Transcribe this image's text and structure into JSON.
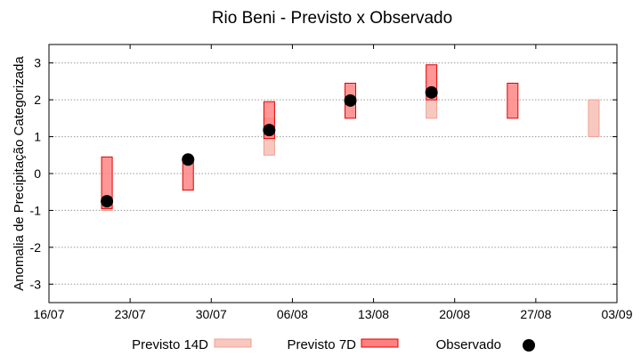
{
  "chart_data": {
    "type": "range",
    "title": "Rio Beni - Previsto x Observado",
    "xlabel": "",
    "ylabel": "Anomalia de Precipitação Categorizada",
    "ylim": [
      -3.5,
      3.5
    ],
    "yticks": [
      "-3",
      "-2",
      "-1",
      "0",
      "1",
      "2",
      "3"
    ],
    "xlim": [
      "2024-07-16",
      "2024-09-03"
    ],
    "xticks": [
      "16/07",
      "23/07",
      "30/07",
      "06/08",
      "13/08",
      "20/08",
      "27/08",
      "03/09"
    ],
    "grid": true,
    "legend_position": "bottom",
    "legend": {
      "forecast14": "Previsto 14D",
      "forecast7": "Previsto 7D",
      "observed": "Observado"
    },
    "colors": {
      "forecast14_fill": "#f8c8c0",
      "forecast14_stroke": "#f0a090",
      "forecast7_fill": "#ff8080",
      "forecast7_stroke": "#e00000",
      "observed": "#000000",
      "grid": "#9a9a9a"
    },
    "series": [
      {
        "name": "Previsto 14D",
        "kind": "range",
        "points": [
          {
            "x": "2024-07-21",
            "low": -1.0,
            "high": -0.75
          },
          {
            "x": "2024-08-04",
            "low": 0.5,
            "high": 1.5
          },
          {
            "x": "2024-08-18",
            "low": 1.5,
            "high": 2.0
          },
          {
            "x": "2024-09-01",
            "low": 1.0,
            "high": 2.0
          }
        ]
      },
      {
        "name": "Previsto 7D",
        "kind": "range",
        "points": [
          {
            "x": "2024-07-21",
            "low": -0.95,
            "high": 0.45
          },
          {
            "x": "2024-07-28",
            "low": -0.45,
            "high": 0.35
          },
          {
            "x": "2024-08-04",
            "low": 0.95,
            "high": 1.95
          },
          {
            "x": "2024-08-11",
            "low": 1.5,
            "high": 2.45
          },
          {
            "x": "2024-08-18",
            "low": 2.0,
            "high": 2.95
          },
          {
            "x": "2024-08-25",
            "low": 1.5,
            "high": 2.45
          }
        ]
      },
      {
        "name": "Observado",
        "kind": "point",
        "points": [
          {
            "x": "2024-07-21",
            "y": -0.75
          },
          {
            "x": "2024-07-28",
            "y": 0.38
          },
          {
            "x": "2024-08-04",
            "y": 1.18
          },
          {
            "x": "2024-08-11",
            "y": 1.98
          },
          {
            "x": "2024-08-18",
            "y": 2.2
          }
        ]
      }
    ]
  }
}
